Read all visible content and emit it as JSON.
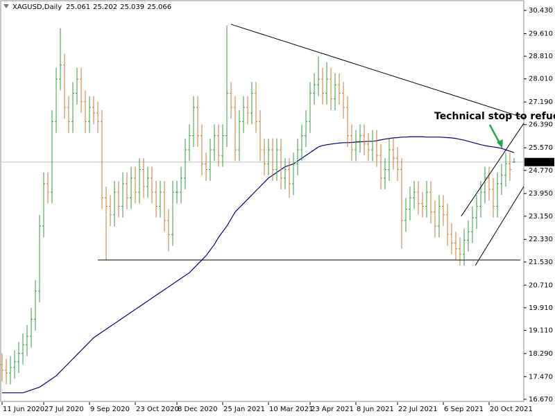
{
  "chart_data": {
    "type": "ohlc",
    "title": "XAGUSD,Daily",
    "categories": [
      "11 Jun 2020",
      null,
      null,
      null,
      null,
      null,
      null,
      null,
      null,
      null,
      "27 Jul 2020",
      null,
      null,
      null,
      null,
      null,
      null,
      null,
      null,
      null,
      null,
      "9 Sep 2020",
      null,
      null,
      null,
      null,
      null,
      null,
      null,
      null,
      null,
      null,
      "23 Oct 2020",
      null,
      null,
      null,
      null,
      null,
      null,
      null,
      null,
      null,
      "8 Dec 2020",
      null,
      null,
      null,
      null,
      null,
      null,
      null,
      null,
      null,
      null,
      "25 Jan 2021",
      null,
      null,
      null,
      null,
      null,
      null,
      null,
      null,
      null,
      null,
      "10 Mar 2021",
      null,
      null,
      null,
      null,
      null,
      null,
      null,
      null,
      null,
      "23 Apr 2021",
      null,
      null,
      null,
      null,
      null,
      null,
      null,
      null,
      null,
      null,
      "8 Jun 2021",
      null,
      null,
      null,
      null,
      null,
      null,
      null,
      null,
      null,
      "22 Jul 2021",
      null,
      null,
      null,
      null,
      null,
      null,
      null,
      null,
      null,
      null,
      "6 Sep 2021",
      null,
      null,
      null,
      null,
      null,
      null,
      null,
      null,
      null,
      null,
      "20 Oct 2021",
      null,
      null,
      null,
      null,
      null,
      null
    ],
    "open": [
      17.9,
      17.7,
      17.6,
      17.8,
      18.0,
      18.3,
      18.6,
      18.9,
      19.5,
      20.5,
      22.8,
      24.3,
      24.0,
      26.5,
      28.0,
      28.5,
      27.0,
      26.5,
      27.5,
      28.0,
      27.2,
      26.5,
      27.0,
      26.8,
      26.5,
      23.8,
      23.5,
      23.2,
      24.0,
      23.5,
      24.3,
      23.8,
      24.5,
      24.0,
      24.8,
      24.2,
      24.5,
      24.0,
      23.5,
      24.0,
      23.0,
      22.5,
      24.0,
      24.0,
      24.5,
      25.5,
      26.0,
      27.0,
      26.0,
      25.0,
      24.8,
      25.5,
      26.0,
      25.3,
      26.0,
      27.5,
      27.0,
      25.5,
      26.5,
      27.0,
      26.8,
      27.5,
      26.5,
      25.5,
      25.0,
      25.5,
      24.8,
      25.5,
      24.5,
      24.8,
      24.3,
      25.0,
      25.5,
      26.0,
      26.5,
      27.5,
      27.8,
      28.0,
      27.5,
      28.0,
      27.3,
      27.8,
      27.5,
      27.0,
      26.0,
      25.5,
      25.8,
      26.0,
      25.7,
      25.5,
      25.8,
      25.3,
      24.5,
      24.8,
      25.5,
      25.2,
      24.8,
      23.0,
      23.4,
      23.8,
      24.0,
      23.6,
      23.5,
      24.0,
      23.3,
      22.8,
      23.5,
      23.2,
      22.5,
      22.2,
      22.0,
      21.8,
      22.3,
      22.6,
      23.1,
      23.5,
      24.0,
      24.5,
      24.1,
      23.5,
      24.3,
      24.6,
      25.0,
      25.061
    ],
    "high": [
      18.3,
      18.1,
      18.2,
      18.4,
      18.7,
      19.0,
      19.3,
      19.9,
      20.9,
      23.2,
      24.7,
      24.7,
      26.9,
      28.4,
      29.8,
      28.9,
      27.4,
      27.9,
      28.4,
      28.4,
      27.6,
      27.4,
      27.4,
      27.2,
      26.9,
      24.2,
      23.9,
      24.4,
      24.4,
      24.7,
      24.7,
      24.9,
      24.9,
      25.2,
      25.2,
      24.9,
      24.9,
      24.4,
      24.4,
      24.4,
      23.4,
      24.4,
      24.4,
      24.9,
      25.9,
      26.4,
      27.4,
      27.4,
      26.4,
      25.4,
      25.9,
      26.4,
      26.4,
      26.4,
      29.9,
      27.9,
      27.4,
      26.9,
      27.4,
      27.4,
      27.9,
      27.9,
      26.9,
      25.9,
      25.9,
      25.9,
      25.9,
      25.9,
      25.2,
      25.2,
      25.4,
      25.9,
      26.4,
      26.9,
      27.9,
      28.2,
      28.8,
      28.4,
      28.6,
      28.4,
      28.2,
      28.2,
      27.9,
      27.4,
      26.4,
      26.2,
      26.4,
      26.4,
      26.1,
      26.2,
      26.2,
      25.7,
      25.2,
      25.9,
      25.9,
      25.6,
      25.2,
      23.8,
      24.2,
      24.4,
      24.4,
      24.0,
      24.4,
      24.4,
      23.7,
      23.9,
      23.9,
      23.6,
      22.9,
      22.6,
      22.4,
      22.7,
      23.0,
      23.5,
      23.9,
      24.4,
      24.9,
      24.9,
      24.5,
      24.7,
      25.0,
      25.4,
      25.4,
      25.202
    ],
    "low": [
      17.3,
      17.2,
      17.2,
      17.4,
      17.6,
      17.9,
      18.2,
      18.5,
      19.1,
      20.1,
      22.4,
      23.6,
      23.6,
      26.1,
      27.6,
      26.6,
      26.1,
      26.1,
      27.1,
      26.8,
      26.1,
      26.1,
      26.4,
      26.1,
      23.4,
      21.6,
      22.8,
      22.8,
      23.1,
      23.1,
      23.4,
      23.4,
      23.6,
      23.6,
      23.8,
      23.8,
      23.6,
      23.1,
      23.1,
      22.6,
      21.9,
      22.1,
      23.6,
      23.6,
      24.1,
      25.1,
      25.6,
      25.6,
      24.6,
      24.4,
      24.4,
      25.1,
      24.9,
      24.9,
      25.6,
      26.6,
      25.1,
      25.1,
      26.1,
      26.4,
      26.4,
      26.1,
      25.1,
      24.6,
      24.6,
      24.4,
      24.4,
      24.1,
      24.1,
      23.8,
      23.9,
      24.6,
      25.1,
      25.6,
      26.1,
      27.1,
      27.4,
      27.1,
      27.1,
      26.9,
      26.9,
      27.1,
      26.6,
      25.6,
      25.1,
      25.1,
      25.4,
      25.3,
      25.1,
      25.1,
      24.9,
      24.1,
      24.1,
      24.4,
      24.8,
      24.4,
      22.0,
      22.6,
      23.0,
      23.4,
      23.2,
      23.1,
      23.1,
      22.9,
      22.4,
      22.4,
      22.8,
      22.1,
      21.8,
      21.6,
      21.4,
      21.4,
      21.9,
      22.2,
      22.7,
      23.1,
      23.6,
      23.7,
      23.1,
      23.1,
      23.9,
      24.2,
      24.4,
      25.039
    ],
    "close": [
      17.7,
      17.6,
      17.8,
      18.0,
      18.3,
      18.6,
      18.9,
      19.5,
      20.5,
      22.8,
      24.3,
      24.0,
      26.5,
      28.0,
      28.5,
      27.0,
      26.5,
      27.5,
      28.0,
      27.2,
      26.5,
      27.0,
      26.8,
      26.5,
      23.8,
      23.5,
      23.2,
      24.0,
      23.5,
      24.3,
      23.8,
      24.5,
      24.0,
      24.8,
      24.2,
      24.5,
      24.0,
      23.5,
      24.0,
      23.0,
      22.5,
      24.0,
      24.0,
      24.5,
      25.5,
      26.0,
      27.0,
      26.0,
      25.0,
      24.8,
      25.5,
      26.0,
      25.3,
      26.0,
      27.5,
      27.0,
      25.5,
      26.5,
      27.0,
      26.8,
      27.5,
      26.5,
      25.5,
      25.0,
      25.5,
      24.8,
      25.5,
      24.5,
      24.8,
      24.3,
      25.0,
      25.5,
      26.0,
      26.5,
      27.5,
      27.8,
      28.0,
      27.5,
      28.0,
      27.3,
      27.8,
      27.5,
      27.0,
      26.0,
      25.5,
      25.8,
      26.0,
      25.7,
      25.5,
      25.8,
      25.3,
      24.5,
      24.8,
      25.5,
      25.2,
      24.8,
      23.0,
      23.4,
      23.8,
      24.0,
      23.6,
      23.5,
      24.0,
      23.3,
      22.8,
      23.5,
      23.2,
      22.5,
      22.2,
      22.0,
      21.8,
      22.3,
      22.6,
      23.1,
      23.5,
      24.0,
      24.5,
      24.1,
      23.5,
      24.3,
      24.6,
      25.0,
      24.8,
      25.066
    ],
    "up_color": "#2f9e3f",
    "down_color": "#cc7a2c",
    "ma": {
      "color": "#00007f",
      "values": [
        16.9,
        16.9,
        16.9,
        16.9,
        16.9,
        16.9,
        16.95,
        17.0,
        17.05,
        17.1,
        17.2,
        17.3,
        17.4,
        17.5,
        17.65,
        17.8,
        17.95,
        18.1,
        18.25,
        18.4,
        18.55,
        18.7,
        18.85,
        18.95,
        19.05,
        19.15,
        19.25,
        19.35,
        19.45,
        19.55,
        19.65,
        19.75,
        19.85,
        19.95,
        20.05,
        20.15,
        20.25,
        20.35,
        20.45,
        20.55,
        20.65,
        20.75,
        20.85,
        20.95,
        21.05,
        21.15,
        21.3,
        21.45,
        21.6,
        21.75,
        21.95,
        22.15,
        22.4,
        22.6,
        22.8,
        23.05,
        23.3,
        23.45,
        23.6,
        23.75,
        23.9,
        24.05,
        24.2,
        24.35,
        24.5,
        24.6,
        24.7,
        24.8,
        24.9,
        24.95,
        25.0,
        25.1,
        25.2,
        25.3,
        25.4,
        25.5,
        25.6,
        25.65,
        25.68,
        25.7,
        25.72,
        25.74,
        25.75,
        25.75,
        25.76,
        25.77,
        25.78,
        25.79,
        25.8,
        25.8,
        25.82,
        25.85,
        25.88,
        25.9,
        25.92,
        25.93,
        25.95,
        25.95,
        25.96,
        25.96,
        25.96,
        25.96,
        25.95,
        25.95,
        25.95,
        25.95,
        25.94,
        25.93,
        25.92,
        25.9,
        25.87,
        25.84,
        25.8,
        25.76,
        25.72,
        25.68,
        25.65,
        25.62,
        25.6,
        25.58,
        25.55,
        25.5,
        25.45,
        25.4
      ]
    },
    "lines": [
      {
        "color": "#000000",
        "from": [
          55,
          29.94
        ],
        "to": [
          126,
          26.6
        ]
      },
      {
        "color": "#000000",
        "from": [
          23,
          21.6
        ],
        "to": [
          124.5,
          21.6
        ]
      },
      {
        "color": "#000000",
        "from": [
          110.3,
          23.15
        ],
        "to": [
          126,
          26.58
        ]
      },
      {
        "color": "#000000",
        "from": [
          113.7,
          21.41
        ],
        "to": [
          127.8,
          24.79
        ]
      }
    ],
    "annotation": {
      "text": "Technical stop to refuel",
      "color": "#22a84a"
    },
    "ylim": [
      16.57,
      30.8
    ],
    "yticks": [
      {
        "value": 16.67,
        "label": "16.670"
      },
      {
        "value": 17.47,
        "label": "17.470"
      },
      {
        "value": 18.29,
        "label": "18.290"
      },
      {
        "value": 19.11,
        "label": "19.110"
      },
      {
        "value": 19.91,
        "label": "19.910"
      },
      {
        "value": 20.71,
        "label": "20.710"
      },
      {
        "value": 21.53,
        "label": "21.530"
      },
      {
        "value": 22.33,
        "label": "22.330"
      },
      {
        "value": 23.15,
        "label": "23.150"
      },
      {
        "value": 23.95,
        "label": "23.950"
      },
      {
        "value": 24.77,
        "label": "24.770"
      },
      {
        "value": 25.57,
        "label": "25.570"
      },
      {
        "value": 26.39,
        "label": "26.390"
      },
      {
        "value": 27.19,
        "label": "27.190"
      },
      {
        "value": 28.01,
        "label": "28.010"
      },
      {
        "value": 28.81,
        "label": "28.810"
      },
      {
        "value": 29.61,
        "label": "29.610"
      },
      {
        "value": 30.43,
        "label": "30.430"
      }
    ],
    "grid": false
  }
}
